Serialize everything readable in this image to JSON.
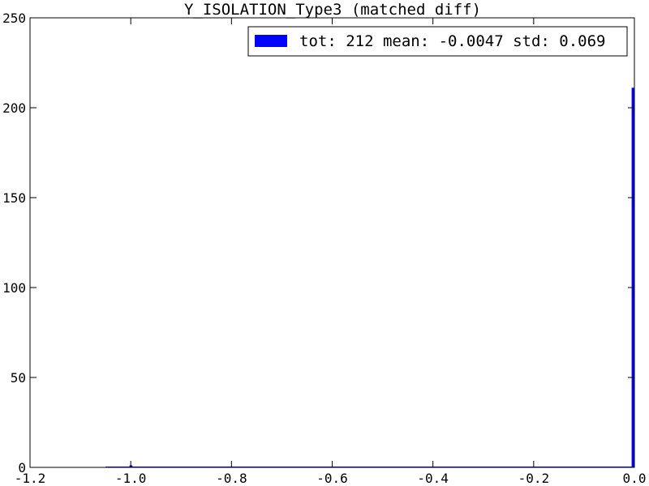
{
  "chart_data": {
    "type": "bar",
    "title": "Y_ISOLATION_Type3 (matched diff)",
    "xlabel": "",
    "ylabel": "",
    "xlim": [
      -1.2,
      0.0
    ],
    "ylim": [
      0,
      250
    ],
    "xticks": [
      -1.2,
      -1.0,
      -0.8,
      -0.6,
      -0.4,
      -0.2,
      0.0
    ],
    "xtick_labels": [
      "-1.2",
      "-1.0",
      "-0.8",
      "-0.6",
      "-0.4",
      "-0.2",
      "0.0"
    ],
    "yticks": [
      0,
      50,
      100,
      150,
      200,
      250
    ],
    "ytick_labels": [
      "0",
      "50",
      "100",
      "150",
      "200",
      "250"
    ],
    "grid": false,
    "legend_position": "top-right",
    "series": [
      {
        "name": "tot: 212 mean: -0.0047 std: 0.069",
        "color": "#0000ff",
        "bins": [
          {
            "x0": -1.002,
            "x1": -0.997,
            "count": 1
          },
          {
            "x0": -0.005,
            "x1": 0.0,
            "count": 211
          }
        ]
      }
    ]
  }
}
